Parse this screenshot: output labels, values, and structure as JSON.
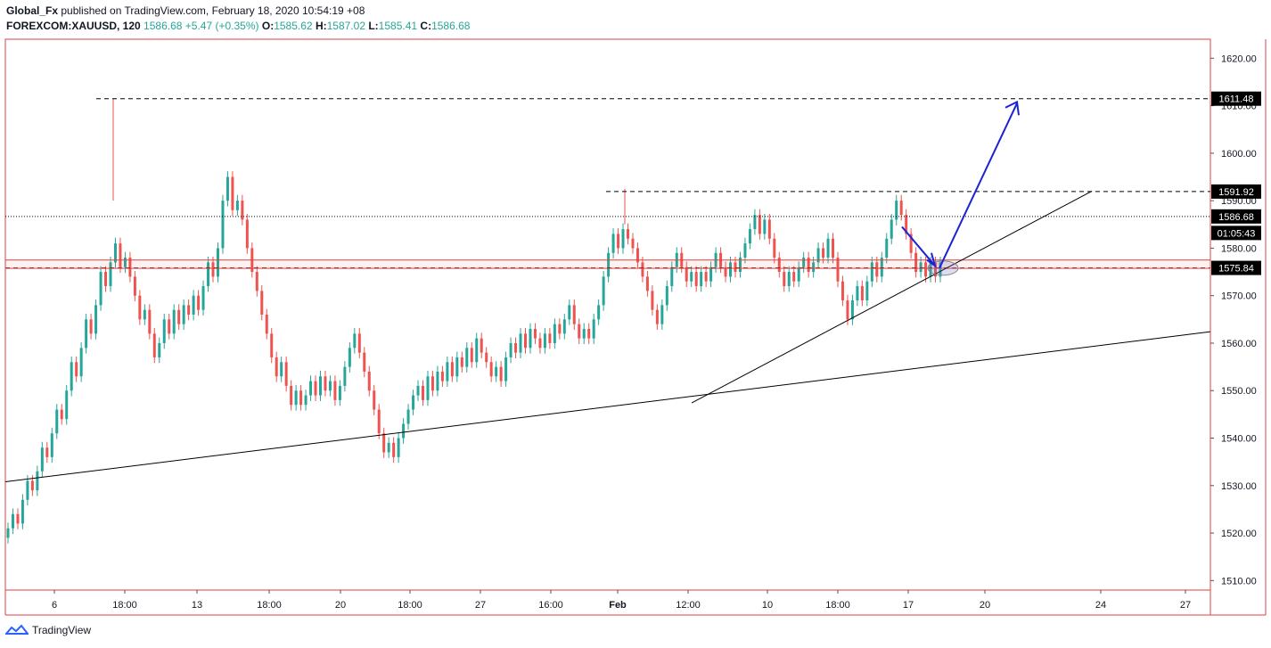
{
  "header": {
    "author": "Global_Fx",
    "published_text": " published on TradingView.com, February 18, 2020 10:54:19 +08",
    "symbol": "FOREXCOM:XAUUSD, 120",
    "last": "1586.68",
    "change": "+5.47 (+0.35%)",
    "open_label": "O:",
    "open": "1585.62",
    "high_label": "H:",
    "high": "1587.02",
    "low_label": "L:",
    "low": "1585.41",
    "close_label": "C:",
    "close": "1586.68"
  },
  "footer": {
    "brand": "TradingView",
    "logo_icon": "tradingview-logo-icon"
  },
  "colors": {
    "up": "#26a69a",
    "down": "#ef5350",
    "frame": "#e04040",
    "arrow": "#1a22d6",
    "tag": "#000000"
  },
  "chart_data": {
    "type": "candlestick",
    "ylim": [
      1508,
      1624
    ],
    "y_ticks": [
      "1620.00",
      "1610.00",
      "1600.00",
      "1590.00",
      "1580.00",
      "1570.00",
      "1560.00",
      "1550.00",
      "1540.00",
      "1530.00",
      "1520.00",
      "1510.00"
    ],
    "x_ticks": [
      "6",
      "18:00",
      "13",
      "18:00",
      "20",
      "18:00",
      "27",
      "16:00",
      "Feb",
      "12:00",
      "10",
      "18:00",
      "17",
      "20",
      "24",
      "27"
    ],
    "price_tags": [
      {
        "label": "1611.48",
        "value": 1611.48
      },
      {
        "label": "1591.92",
        "value": 1591.92
      },
      {
        "label": "1586.68",
        "value": 1586.68
      },
      {
        "label": "01:05:43",
        "value": 1583.2
      },
      {
        "label": "1575.84",
        "value": 1575.84
      }
    ],
    "close_path": [
      [
        0,
        1519
      ],
      [
        8,
        1532
      ],
      [
        20,
        1540
      ],
      [
        32,
        1560
      ],
      [
        42,
        1566
      ],
      [
        50,
        1578
      ],
      [
        58,
        1576
      ],
      [
        66,
        1566
      ],
      [
        74,
        1562
      ],
      [
        82,
        1568
      ],
      [
        90,
        1567
      ],
      [
        100,
        1575
      ],
      [
        108,
        1590
      ],
      [
        112,
        1586
      ],
      [
        118,
        1575
      ],
      [
        124,
        1560
      ],
      [
        132,
        1553
      ],
      [
        140,
        1547
      ],
      [
        150,
        1549
      ],
      [
        160,
        1547
      ],
      [
        168,
        1548
      ],
      [
        176,
        1555
      ],
      [
        180,
        1561
      ],
      [
        188,
        1555
      ],
      [
        196,
        1550
      ],
      [
        204,
        1541
      ],
      [
        212,
        1537
      ],
      [
        220,
        1542
      ],
      [
        228,
        1547
      ],
      [
        236,
        1551
      ],
      [
        244,
        1552
      ],
      [
        252,
        1548
      ],
      [
        260,
        1553
      ],
      [
        268,
        1556
      ],
      [
        276,
        1556
      ],
      [
        284,
        1558
      ],
      [
        292,
        1563
      ],
      [
        300,
        1566
      ],
      [
        306,
        1564
      ],
      [
        312,
        1560
      ],
      [
        320,
        1557
      ],
      [
        328,
        1553
      ],
      [
        336,
        1557
      ],
      [
        344,
        1562
      ],
      [
        352,
        1560
      ],
      [
        360,
        1562
      ],
      [
        368,
        1562
      ],
      [
        376,
        1558
      ],
      [
        382,
        1564
      ],
      [
        388,
        1566
      ],
      [
        394,
        1563
      ],
      [
        400,
        1562
      ],
      [
        404,
        1572
      ],
      [
        410,
        1583
      ],
      [
        416,
        1584
      ],
      [
        424,
        1581
      ],
      [
        432,
        1577
      ],
      [
        440,
        1575
      ],
      [
        448,
        1570
      ],
      [
        456,
        1567
      ],
      [
        464,
        1572
      ],
      [
        470,
        1577
      ],
      [
        478,
        1580
      ],
      [
        484,
        1575
      ],
      [
        490,
        1572
      ],
      [
        496,
        1575
      ],
      [
        504,
        1575
      ],
      [
        512,
        1578
      ],
      [
        518,
        1576
      ],
      [
        524,
        1583
      ],
      [
        530,
        1583
      ],
      [
        536,
        1587
      ],
      [
        542,
        1587
      ],
      [
        548,
        1583
      ],
      [
        556,
        1581
      ],
      [
        562,
        1575
      ],
      [
        568,
        1574
      ],
      [
        576,
        1572
      ],
      [
        584,
        1576
      ],
      [
        592,
        1578
      ],
      [
        598,
        1580
      ],
      [
        604,
        1577
      ],
      [
        610,
        1577
      ],
      [
        618,
        1573
      ],
      [
        624,
        1568
      ],
      [
        632,
        1560
      ],
      [
        638,
        1551
      ],
      [
        644,
        1556
      ],
      [
        650,
        1557
      ],
      [
        658,
        1553
      ],
      [
        666,
        1561
      ],
      [
        672,
        1563
      ],
      [
        680,
        1566
      ],
      [
        686,
        1567
      ],
      [
        694,
        1568
      ],
      [
        700,
        1571
      ],
      [
        708,
        1571
      ],
      [
        716,
        1575
      ],
      [
        722,
        1575
      ],
      [
        730,
        1573
      ],
      [
        736,
        1569
      ],
      [
        744,
        1568
      ],
      [
        750,
        1567
      ],
      [
        756,
        1568
      ],
      [
        762,
        1566
      ],
      [
        770,
        1570
      ],
      [
        776,
        1573
      ],
      [
        782,
        1574
      ],
      [
        790,
        1576
      ],
      [
        798,
        1577
      ],
      [
        806,
        1576
      ],
      [
        812,
        1578
      ],
      [
        816,
        1584
      ],
      [
        822,
        1582
      ],
      [
        828,
        1581
      ],
      [
        834,
        1580
      ],
      [
        840,
        1582
      ],
      [
        846,
        1587
      ]
    ],
    "candle_samples": [
      [
        0,
        1519,
        1521
      ],
      [
        2,
        1521,
        1524
      ],
      [
        4,
        1524,
        1522
      ],
      [
        6,
        1522,
        1527
      ],
      [
        8,
        1527,
        1531
      ],
      [
        10,
        1531,
        1529
      ],
      [
        12,
        1529,
        1533
      ],
      [
        14,
        1533,
        1538
      ],
      [
        16,
        1538,
        1536
      ],
      [
        18,
        1536,
        1541
      ],
      [
        20,
        1541,
        1546
      ],
      [
        22,
        1546,
        1544
      ],
      [
        24,
        1544,
        1550
      ],
      [
        26,
        1550,
        1556
      ],
      [
        28,
        1556,
        1553
      ],
      [
        30,
        1553,
        1559
      ],
      [
        32,
        1559,
        1565
      ],
      [
        34,
        1565,
        1562
      ],
      [
        36,
        1562,
        1568
      ],
      [
        38,
        1568,
        1575
      ],
      [
        40,
        1575,
        1572
      ],
      [
        42,
        1572,
        1577
      ],
      [
        44,
        1577,
        1581
      ],
      [
        46,
        1581,
        1576
      ],
      [
        48,
        1576,
        1578
      ],
      [
        50,
        1578,
        1574
      ],
      [
        52,
        1574,
        1570
      ],
      [
        54,
        1570,
        1565
      ],
      [
        56,
        1565,
        1567
      ],
      [
        58,
        1567,
        1562
      ],
      [
        60,
        1562,
        1557
      ],
      [
        62,
        1557,
        1560
      ],
      [
        64,
        1560,
        1565
      ],
      [
        66,
        1565,
        1562
      ],
      [
        68,
        1562,
        1567
      ],
      [
        70,
        1567,
        1564
      ],
      [
        72,
        1564,
        1568
      ],
      [
        74,
        1568,
        1566
      ],
      [
        76,
        1566,
        1570
      ],
      [
        78,
        1570,
        1567
      ],
      [
        80,
        1567,
        1572
      ],
      [
        82,
        1572,
        1577
      ],
      [
        84,
        1577,
        1574
      ],
      [
        86,
        1574,
        1580
      ],
      [
        88,
        1580,
        1590
      ],
      [
        90,
        1590,
        1595
      ],
      [
        92,
        1595,
        1588
      ],
      [
        94,
        1588,
        1590
      ],
      [
        96,
        1590,
        1586
      ],
      [
        98,
        1586,
        1580
      ],
      [
        100,
        1580,
        1575
      ],
      [
        102,
        1575,
        1571
      ],
      [
        104,
        1571,
        1566
      ],
      [
        106,
        1566,
        1562
      ],
      [
        108,
        1562,
        1557
      ],
      [
        110,
        1557,
        1553
      ],
      [
        112,
        1553,
        1556
      ],
      [
        114,
        1556,
        1551
      ],
      [
        116,
        1551,
        1547
      ],
      [
        118,
        1547,
        1550
      ],
      [
        120,
        1550,
        1547
      ],
      [
        122,
        1547,
        1549
      ],
      [
        124,
        1549,
        1552
      ],
      [
        126,
        1552,
        1549
      ],
      [
        128,
        1549,
        1553
      ],
      [
        130,
        1553,
        1550
      ],
      [
        132,
        1550,
        1552
      ],
      [
        134,
        1552,
        1548
      ],
      [
        136,
        1548,
        1551
      ],
      [
        138,
        1551,
        1555
      ],
      [
        140,
        1555,
        1559
      ],
      [
        142,
        1559,
        1562
      ],
      [
        144,
        1562,
        1558
      ],
      [
        146,
        1558,
        1554
      ],
      [
        148,
        1554,
        1550
      ],
      [
        150,
        1550,
        1546
      ],
      [
        152,
        1546,
        1541
      ],
      [
        154,
        1541,
        1537
      ],
      [
        156,
        1537,
        1539
      ],
      [
        158,
        1539,
        1536
      ],
      [
        160,
        1536,
        1540
      ],
      [
        162,
        1540,
        1543
      ],
      [
        164,
        1543,
        1546
      ],
      [
        166,
        1546,
        1549
      ],
      [
        168,
        1549,
        1551
      ],
      [
        170,
        1551,
        1548
      ],
      [
        172,
        1548,
        1553
      ],
      [
        174,
        1553,
        1550
      ],
      [
        176,
        1550,
        1554
      ],
      [
        178,
        1554,
        1552
      ],
      [
        180,
        1552,
        1556
      ],
      [
        182,
        1556,
        1553
      ],
      [
        184,
        1553,
        1557
      ],
      [
        186,
        1557,
        1555
      ],
      [
        188,
        1555,
        1559
      ],
      [
        190,
        1559,
        1556
      ],
      [
        192,
        1556,
        1561
      ],
      [
        194,
        1561,
        1558
      ],
      [
        196,
        1558,
        1556
      ],
      [
        198,
        1556,
        1553
      ],
      [
        200,
        1553,
        1555
      ],
      [
        202,
        1555,
        1552
      ],
      [
        204,
        1552,
        1557
      ],
      [
        206,
        1557,
        1560
      ],
      [
        208,
        1560,
        1558
      ],
      [
        210,
        1558,
        1562
      ],
      [
        212,
        1562,
        1559
      ],
      [
        214,
        1559,
        1563
      ],
      [
        216,
        1563,
        1561
      ],
      [
        218,
        1561,
        1559
      ],
      [
        220,
        1559,
        1562
      ],
      [
        222,
        1562,
        1560
      ],
      [
        224,
        1560,
        1564
      ],
      [
        226,
        1564,
        1562
      ],
      [
        228,
        1562,
        1565
      ],
      [
        230,
        1565,
        1568
      ],
      [
        232,
        1568,
        1564
      ],
      [
        234,
        1564,
        1561
      ],
      [
        236,
        1561,
        1563
      ],
      [
        238,
        1563,
        1561
      ],
      [
        240,
        1561,
        1565
      ],
      [
        242,
        1565,
        1568
      ],
      [
        244,
        1568,
        1574
      ],
      [
        246,
        1574,
        1579
      ],
      [
        248,
        1579,
        1583
      ],
      [
        250,
        1583,
        1580
      ],
      [
        252,
        1580,
        1584
      ],
      [
        254,
        1584,
        1582
      ],
      [
        256,
        1582,
        1580
      ],
      [
        258,
        1580,
        1577
      ],
      [
        260,
        1577,
        1574
      ],
      [
        262,
        1574,
        1571
      ],
      [
        264,
        1571,
        1567
      ],
      [
        266,
        1567,
        1564
      ],
      [
        268,
        1564,
        1568
      ],
      [
        270,
        1568,
        1572
      ],
      [
        272,
        1572,
        1576
      ],
      [
        274,
        1576,
        1579
      ],
      [
        276,
        1579,
        1576
      ],
      [
        278,
        1576,
        1573
      ],
      [
        280,
        1573,
        1575
      ],
      [
        282,
        1575,
        1572
      ],
      [
        284,
        1572,
        1575
      ],
      [
        286,
        1575,
        1573
      ],
      [
        288,
        1573,
        1576
      ],
      [
        290,
        1576,
        1579
      ],
      [
        292,
        1579,
        1576
      ],
      [
        294,
        1576,
        1574
      ],
      [
        296,
        1574,
        1577
      ],
      [
        298,
        1577,
        1575
      ],
      [
        300,
        1575,
        1578
      ],
      [
        302,
        1578,
        1581
      ],
      [
        304,
        1581,
        1584
      ],
      [
        306,
        1584,
        1587
      ],
      [
        308,
        1587,
        1583
      ],
      [
        310,
        1583,
        1586
      ],
      [
        312,
        1586,
        1582
      ],
      [
        314,
        1582,
        1578
      ],
      [
        316,
        1578,
        1575
      ],
      [
        318,
        1575,
        1572
      ],
      [
        320,
        1572,
        1575
      ],
      [
        322,
        1575,
        1573
      ],
      [
        324,
        1573,
        1576
      ],
      [
        326,
        1576,
        1578
      ],
      [
        328,
        1578,
        1575
      ],
      [
        330,
        1575,
        1577
      ],
      [
        332,
        1577,
        1580
      ],
      [
        334,
        1580,
        1578
      ],
      [
        336,
        1578,
        1582
      ],
      [
        338,
        1582,
        1578
      ],
      [
        340,
        1578,
        1573
      ],
      [
        342,
        1573,
        1569
      ],
      [
        344,
        1569,
        1565
      ],
      [
        346,
        1565,
        1569
      ],
      [
        348,
        1569,
        1572
      ],
      [
        350,
        1572,
        1569
      ],
      [
        352,
        1569,
        1573
      ],
      [
        354,
        1573,
        1577
      ],
      [
        356,
        1577,
        1574
      ],
      [
        358,
        1574,
        1578
      ],
      [
        360,
        1578,
        1582
      ],
      [
        362,
        1582,
        1586
      ],
      [
        364,
        1586,
        1590
      ],
      [
        366,
        1590,
        1587
      ],
      [
        368,
        1587,
        1583
      ],
      [
        370,
        1583,
        1579
      ],
      [
        372,
        1579,
        1575
      ],
      [
        374,
        1575,
        1577
      ],
      [
        376,
        1577,
        1574
      ],
      [
        378,
        1574,
        1577
      ],
      [
        380,
        1577,
        1574
      ],
      [
        382,
        1574,
        1577
      ]
    ]
  },
  "annotations": {
    "horizontal_lines": [
      {
        "label": "1611.48"
      },
      {
        "label": "1591.92"
      },
      {
        "label": "1586.68"
      },
      {
        "label": "1575.84"
      }
    ]
  }
}
